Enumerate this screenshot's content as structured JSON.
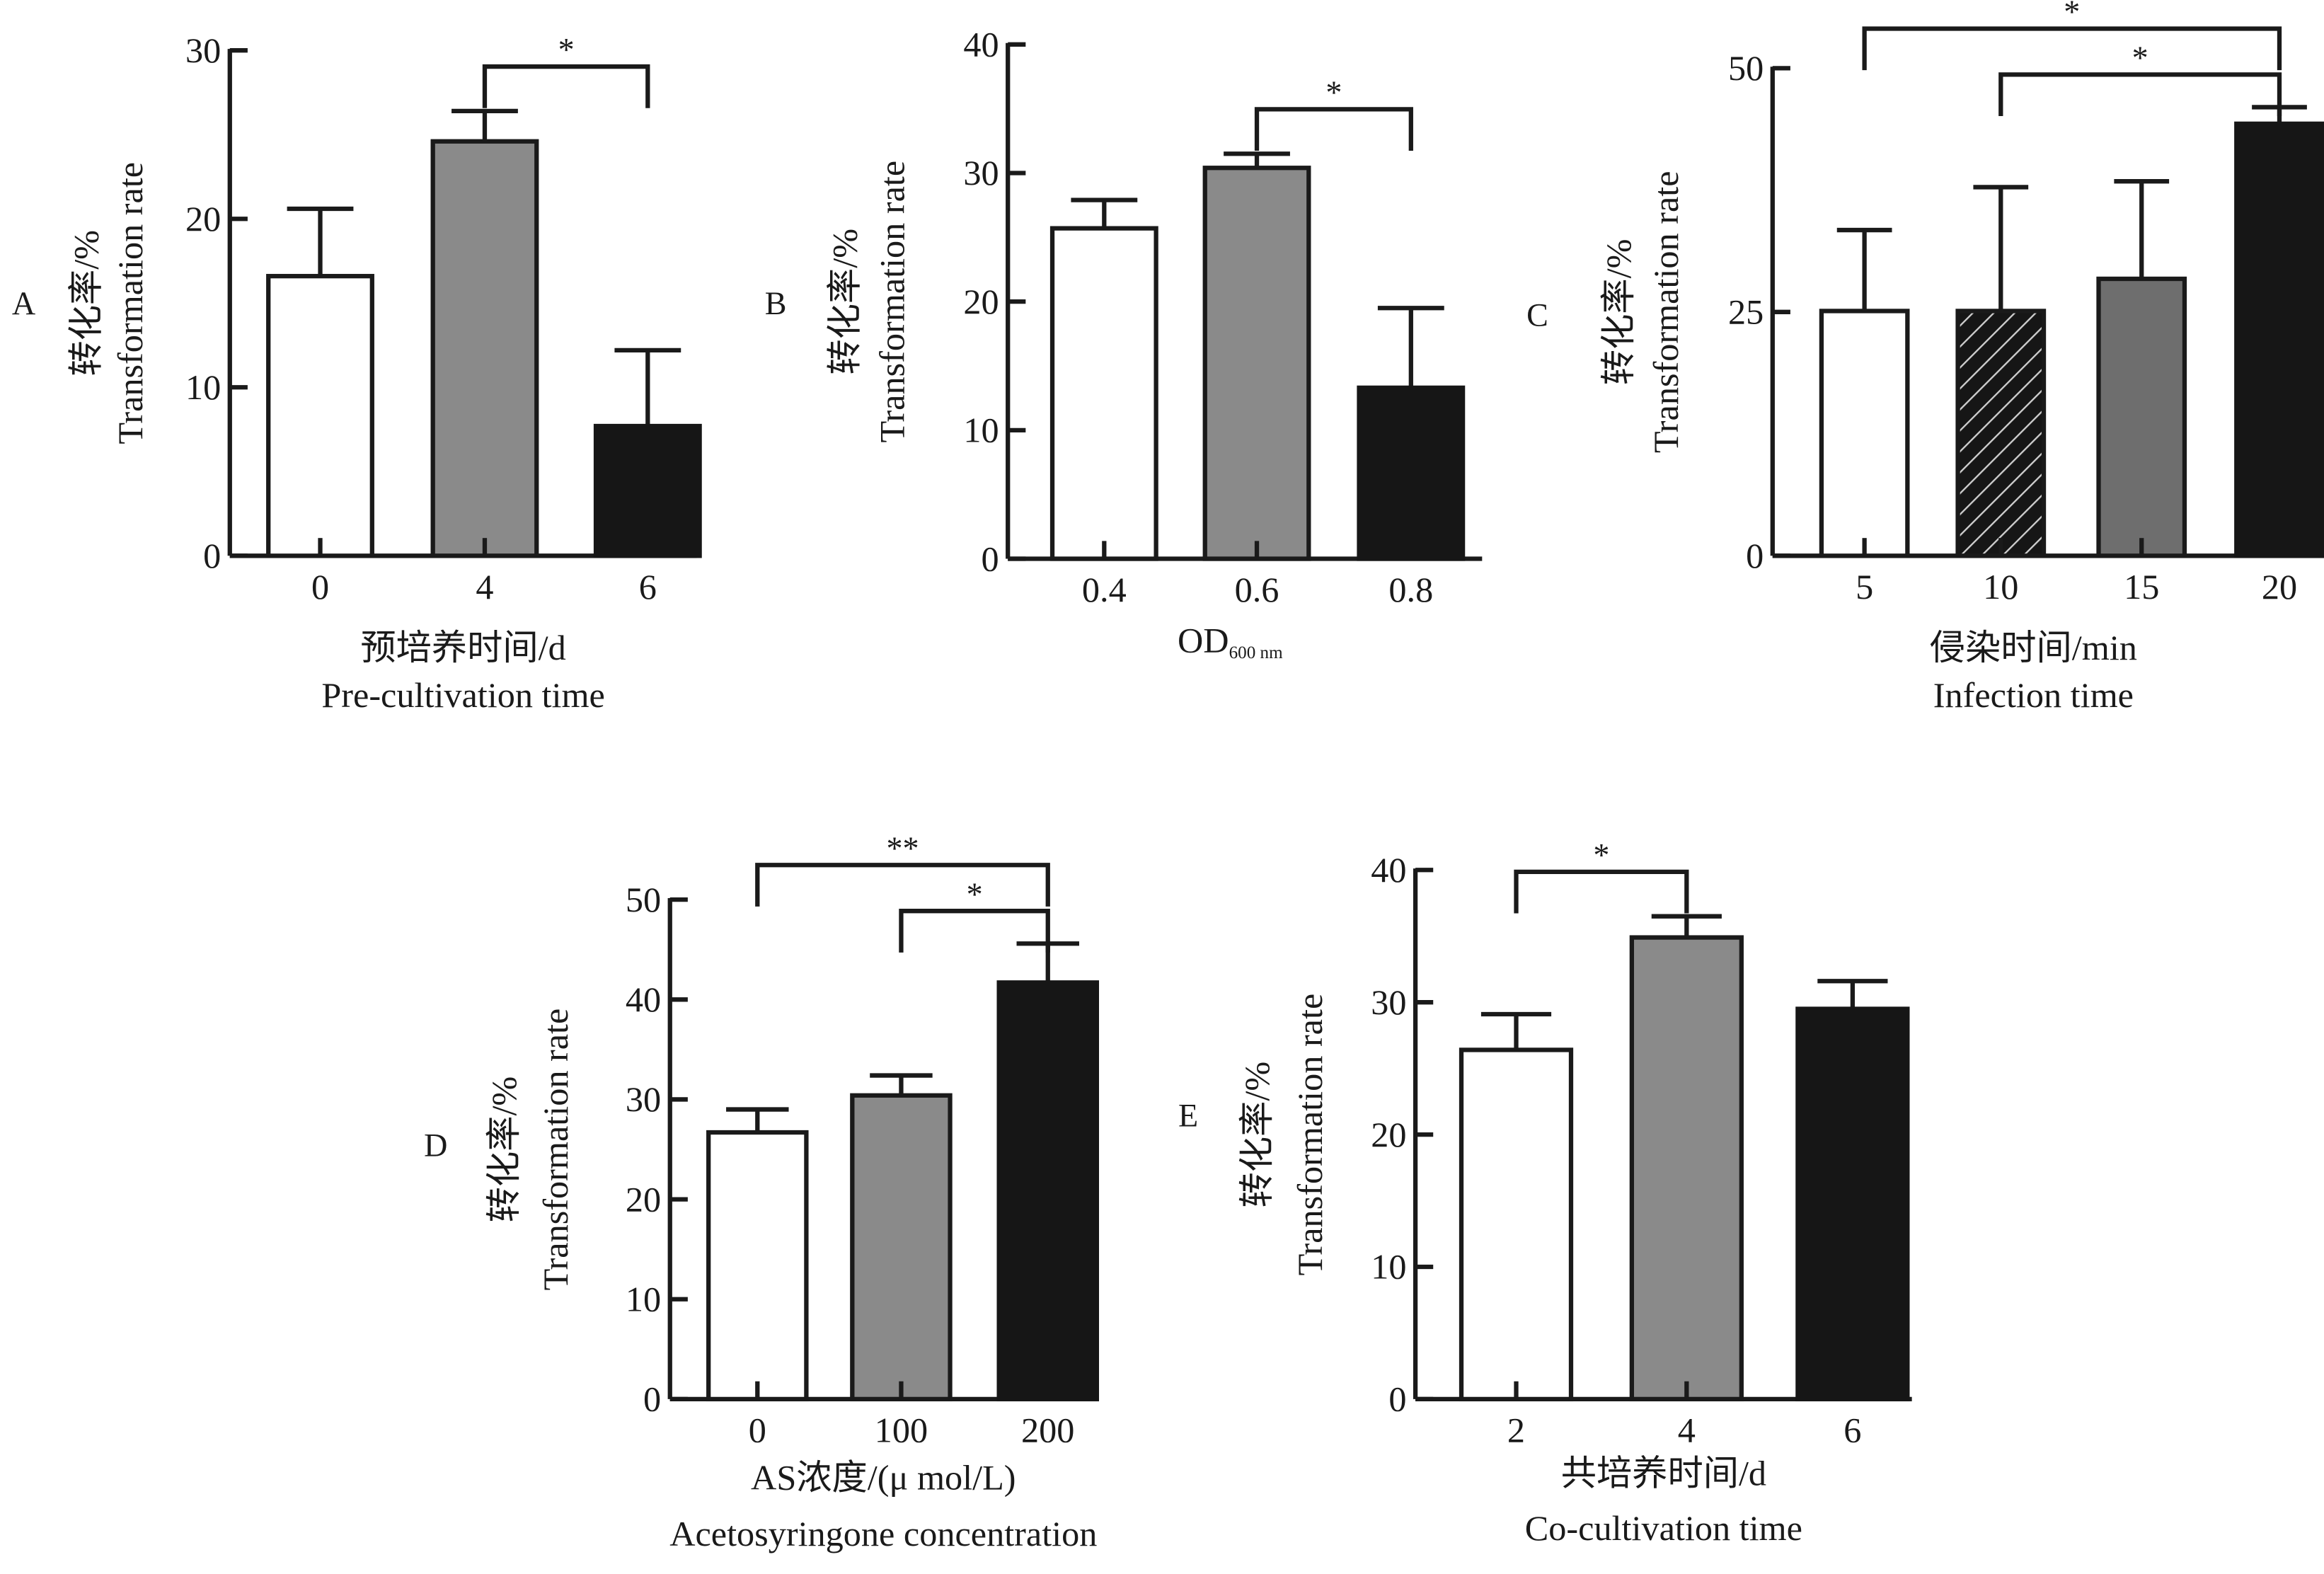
{
  "chart_data": [
    {
      "panel": "A",
      "type": "bar",
      "title": "",
      "ylabel_cn": "转化率/%",
      "ylabel_en": "Transformation rate",
      "xlabel_cn": "预培养时间/d",
      "xlabel_en": "Pre-cultivation time",
      "categories": [
        "0",
        "4",
        "6"
      ],
      "values": [
        16.6,
        24.6,
        7.7
      ],
      "errors": [
        4.0,
        1.8,
        4.5
      ],
      "fills": [
        "#ffffff",
        "#8a8a8a",
        "#161616"
      ],
      "ylim": [
        0,
        30
      ],
      "yticks": [
        0,
        10,
        20,
        30
      ],
      "significance": [
        {
          "from": 1,
          "to": 2,
          "label": "*"
        }
      ]
    },
    {
      "panel": "B",
      "type": "bar",
      "ylabel_cn": "转化率/%",
      "ylabel_en": "Transformation rate",
      "xlabel_main": "OD",
      "xlabel_sub": "600 nm",
      "categories": [
        "0.4",
        "0.6",
        "0.8"
      ],
      "values": [
        25.7,
        30.4,
        13.3
      ],
      "errors": [
        2.2,
        1.1,
        6.2
      ],
      "fills": [
        "#ffffff",
        "#8a8a8a",
        "#161616"
      ],
      "ylim": [
        0,
        40
      ],
      "yticks": [
        0,
        10,
        20,
        30,
        40
      ],
      "significance": [
        {
          "from": 1,
          "to": 2,
          "label": "*"
        }
      ]
    },
    {
      "panel": "C",
      "type": "bar",
      "ylabel_cn": "转化率/%",
      "ylabel_en": "Transformation rate",
      "xlabel_cn": "侵染时间/min",
      "xlabel_en": "Infection time",
      "categories": [
        "5",
        "10",
        "15",
        "20"
      ],
      "values": [
        25.1,
        25.1,
        28.4,
        44.3
      ],
      "errors": [
        8.3,
        12.7,
        10.0,
        1.7
      ],
      "fills": [
        "#ffffff",
        "hatch",
        "#6e6e6e",
        "#161616"
      ],
      "ylim": [
        0,
        50
      ],
      "yticks": [
        0,
        25,
        50
      ],
      "significance": [
        {
          "from": 0,
          "to": 3,
          "label": "*"
        },
        {
          "from": 1,
          "to": 3,
          "label": "*"
        }
      ]
    },
    {
      "panel": "D",
      "type": "bar",
      "ylabel_cn": "转化率/%",
      "ylabel_en": "Transformation rate",
      "xlabel_cn": "AS浓度/(μ mol/L)",
      "xlabel_en": "Acetosyringone concentration",
      "categories": [
        "0",
        "100",
        "200"
      ],
      "values": [
        26.7,
        30.4,
        41.7
      ],
      "errors": [
        2.3,
        2.0,
        3.9
      ],
      "fills": [
        "#ffffff",
        "#8a8a8a",
        "#161616"
      ],
      "ylim": [
        0,
        50
      ],
      "yticks": [
        0,
        10,
        20,
        30,
        40,
        50
      ],
      "significance": [
        {
          "from": 0,
          "to": 2,
          "label": "**"
        },
        {
          "from": 1,
          "to": 2,
          "label": "*"
        }
      ]
    },
    {
      "panel": "E",
      "type": "bar",
      "ylabel_cn": "转化率/%",
      "ylabel_en": "Transformation rate",
      "xlabel_cn": "共培养时间/d",
      "xlabel_en": "Co-cultivation time",
      "categories": [
        "2",
        "4",
        "6"
      ],
      "values": [
        26.4,
        34.9,
        29.5
      ],
      "errors": [
        2.7,
        1.6,
        2.1
      ],
      "fills": [
        "#ffffff",
        "#8a8a8a",
        "#161616"
      ],
      "ylim": [
        0,
        40
      ],
      "yticks": [
        0,
        10,
        20,
        30,
        40
      ],
      "significance": [
        {
          "from": 0,
          "to": 1,
          "label": "*"
        }
      ]
    }
  ]
}
